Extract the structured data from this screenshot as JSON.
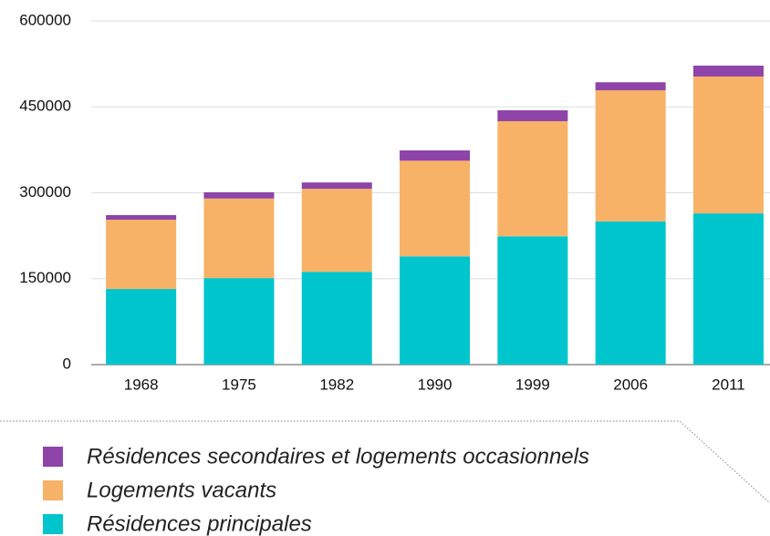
{
  "chart_data": {
    "type": "stacked_bar",
    "categories": [
      "1968",
      "1975",
      "1982",
      "1990",
      "1999",
      "2006",
      "2011"
    ],
    "series": [
      {
        "name": "Résidences principales",
        "color": "#00c5cd",
        "values": [
          132000,
          151000,
          162000,
          189000,
          224000,
          250000,
          264000
        ]
      },
      {
        "name": "Logements vacants",
        "color": "#f7b267",
        "values": [
          121000,
          139000,
          145000,
          167000,
          201000,
          229000,
          239000
        ]
      },
      {
        "name": "Résidences secondaires et logements occasionnels",
        "color": "#8e44a8",
        "values": [
          8000,
          11000,
          11000,
          18000,
          19000,
          14000,
          19000
        ]
      }
    ],
    "ylim": [
      0,
      600000
    ],
    "yticks": [
      0,
      150000,
      300000,
      450000,
      600000
    ],
    "grid": true
  }
}
